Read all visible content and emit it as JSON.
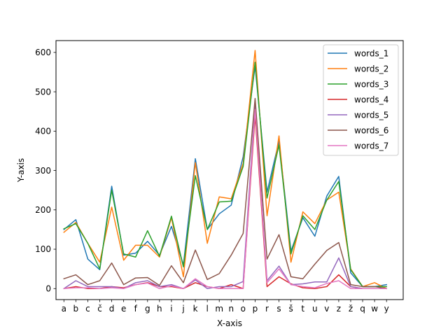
{
  "chart_data": {
    "type": "line",
    "title": "",
    "xlabel": "X-axis",
    "ylabel": "Y-axis",
    "categories": [
      "a",
      "b",
      "c",
      "č",
      "d",
      "e",
      "f",
      "g",
      "h",
      "i",
      "j",
      "k",
      "l",
      "m",
      "n",
      "o",
      "p",
      "r",
      "s",
      "š",
      "t",
      "u",
      "v",
      "z",
      "ž",
      "q",
      "w",
      "y"
    ],
    "ylim": [
      -28,
      630
    ],
    "yticks": [
      0,
      100,
      200,
      300,
      400,
      500,
      600
    ],
    "grid": false,
    "legend_position": "top-right",
    "series": [
      {
        "name": "words_1",
        "color": "#1f77b4",
        "values": [
          150,
          175,
          75,
          48,
          260,
          85,
          90,
          120,
          85,
          158,
          60,
          330,
          150,
          190,
          212,
          335,
          565,
          245,
          375,
          95,
          180,
          133,
          235,
          285,
          40,
          5,
          5,
          10
        ]
      },
      {
        "name": "words_2",
        "color": "#ff7f0e",
        "values": [
          143,
          168,
          115,
          67,
          207,
          72,
          110,
          110,
          80,
          180,
          30,
          320,
          115,
          233,
          228,
          318,
          605,
          185,
          388,
          67,
          195,
          165,
          225,
          245,
          50,
          5,
          15,
          0
        ]
      },
      {
        "name": "words_3",
        "color": "#2ca02c",
        "values": [
          152,
          165,
          115,
          50,
          250,
          88,
          80,
          147,
          82,
          184,
          55,
          287,
          150,
          220,
          222,
          310,
          575,
          230,
          365,
          88,
          185,
          150,
          225,
          272,
          48,
          5,
          5,
          5
        ]
      },
      {
        "name": "words_4",
        "color": "#d62728",
        "values": [
          0,
          5,
          0,
          0,
          5,
          2,
          10,
          15,
          5,
          5,
          0,
          15,
          5,
          0,
          10,
          0,
          440,
          5,
          30,
          12,
          2,
          0,
          5,
          35,
          5,
          0,
          0,
          0
        ]
      },
      {
        "name": "words_5",
        "color": "#9467bd",
        "values": [
          0,
          20,
          5,
          5,
          5,
          0,
          15,
          20,
          5,
          10,
          0,
          22,
          0,
          5,
          5,
          18,
          470,
          20,
          57,
          10,
          12,
          17,
          17,
          78,
          5,
          0,
          0,
          0
        ]
      },
      {
        "name": "words_6",
        "color": "#8c564b",
        "values": [
          25,
          35,
          10,
          20,
          65,
          10,
          27,
          28,
          8,
          58,
          15,
          98,
          23,
          38,
          85,
          140,
          483,
          75,
          137,
          30,
          25,
          62,
          97,
          117,
          10,
          5,
          5,
          0
        ]
      },
      {
        "name": "words_7",
        "color": "#e377c2",
        "values": [
          0,
          2,
          2,
          0,
          2,
          0,
          10,
          14,
          0,
          7,
          0,
          25,
          5,
          0,
          0,
          0,
          455,
          15,
          50,
          10,
          5,
          2,
          13,
          20,
          0,
          0,
          0,
          0
        ]
      }
    ]
  }
}
